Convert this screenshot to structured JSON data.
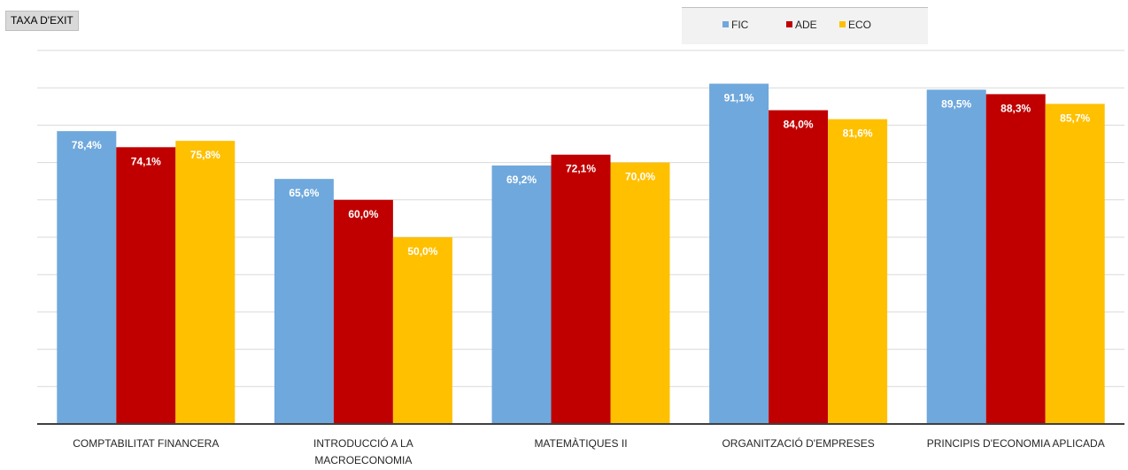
{
  "chart_data": {
    "type": "bar",
    "title": "TAXA D'EXIT",
    "categories": [
      [
        "COMPTABILITAT FINANCERA"
      ],
      [
        "INTRODUCCIÓ A LA",
        "MACROECONOMIA"
      ],
      [
        "MATEMÀTIQUES II"
      ],
      [
        "ORGANITZACIÓ D'EMPRESES"
      ],
      [
        "PRINCIPIS D'ECONOMIA APLICADA"
      ]
    ],
    "series": [
      {
        "name": "FIC",
        "color": "#6fa8dc",
        "values": [
          78.4,
          65.6,
          69.2,
          91.1,
          89.5
        ],
        "labels": [
          "78,4%",
          "65,6%",
          "69,2%",
          "91,1%",
          "89,5%"
        ]
      },
      {
        "name": "ADE",
        "color": "#c00000",
        "values": [
          74.1,
          60.0,
          72.1,
          84.0,
          88.3
        ],
        "labels": [
          "74,1%",
          "60,0%",
          "72,1%",
          "84,0%",
          "88,3%"
        ]
      },
      {
        "name": "ECO",
        "color": "#ffc000",
        "values": [
          75.8,
          50.0,
          70.0,
          81.6,
          85.7
        ],
        "labels": [
          "75,8%",
          "50,0%",
          "70,0%",
          "81,6%",
          "85,7%"
        ]
      }
    ],
    "ylim": [
      0,
      100
    ],
    "legend": "top-right",
    "grid": true,
    "xlabel": "",
    "ylabel": ""
  }
}
